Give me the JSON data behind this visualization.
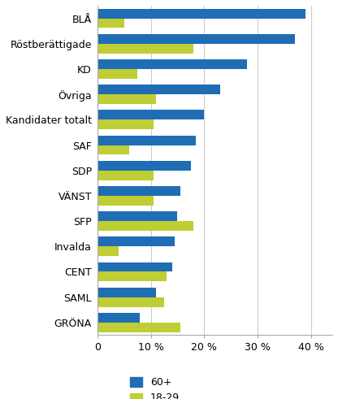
{
  "categories": [
    "BLÅ",
    "Röstberättigade",
    "KD",
    "Övriga",
    "Kandidater totalt",
    "SAF",
    "SDP",
    "VÄNST",
    "SFP",
    "Invalda",
    "CENT",
    "SAML",
    "GRÖNA"
  ],
  "values_60plus": [
    39,
    37,
    28,
    23,
    20,
    18.5,
    17.5,
    15.5,
    15,
    14.5,
    14,
    11,
    8
  ],
  "values_18_29": [
    5,
    18,
    7.5,
    11,
    10.5,
    6,
    10.5,
    10.5,
    18,
    4,
    13,
    12.5,
    15.5
  ],
  "color_60plus": "#1F6EB5",
  "color_18_29": "#BFCE35",
  "xlim": [
    0,
    44
  ],
  "xticks": [
    0,
    10,
    20,
    30,
    40
  ],
  "xticklabels": [
    "0",
    "10 %",
    "20 %",
    "30 %",
    "40 %"
  ],
  "legend_labels": [
    "60+",
    "18-29"
  ],
  "background_color": "#ffffff",
  "grid_color": "#cccccc",
  "bar_height": 0.38
}
